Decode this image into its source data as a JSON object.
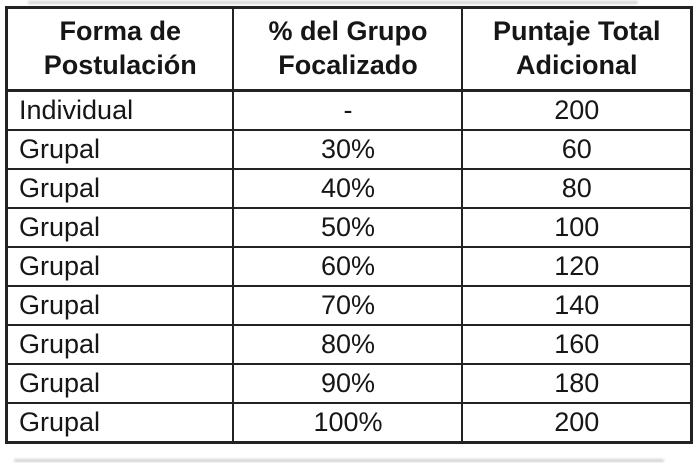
{
  "document": {
    "colors": {
      "border": "#222222",
      "text": "#161616",
      "background": "#ffffff"
    },
    "table": {
      "columns": [
        {
          "key": "forma-de-postulacion",
          "label_line1": "Forma de",
          "label_line2": "Postulación"
        },
        {
          "key": "grupo-focalizado",
          "label_line1": "% del Grupo",
          "label_line2": "Focalizado"
        },
        {
          "key": "puntaje-adicional",
          "label_line1": "Puntaje Total",
          "label_line2": "Adicional"
        }
      ],
      "rows": [
        [
          "Individual",
          "-",
          "200"
        ],
        [
          "Grupal",
          "30%",
          "60"
        ],
        [
          "Grupal",
          "40%",
          "80"
        ],
        [
          "Grupal",
          "50%",
          "100"
        ],
        [
          "Grupal",
          "60%",
          "120"
        ],
        [
          "Grupal",
          "70%",
          "140"
        ],
        [
          "Grupal",
          "80%",
          "160"
        ],
        [
          "Grupal",
          "90%",
          "180"
        ],
        [
          "Grupal",
          "100%",
          "200"
        ]
      ]
    }
  }
}
